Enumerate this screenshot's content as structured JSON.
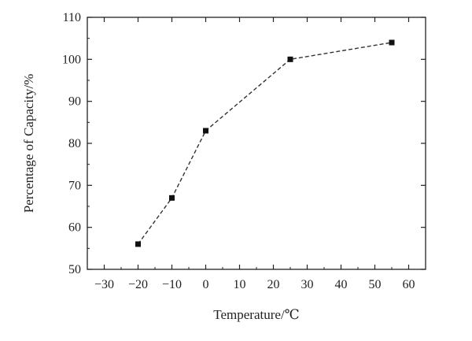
{
  "chart_data": {
    "type": "line",
    "title": "",
    "xlabel": "Temperature/℃",
    "ylabel": "Percentage of Capacity/%",
    "xlim": [
      -35,
      65
    ],
    "ylim": [
      50,
      110
    ],
    "xticks": [
      -30,
      -20,
      -10,
      0,
      10,
      20,
      30,
      40,
      50,
      60
    ],
    "yticks": [
      50,
      60,
      70,
      80,
      90,
      100,
      110
    ],
    "xtick_labels": [
      "−30",
      "−20",
      "−10",
      "0",
      "10",
      "20",
      "30",
      "40",
      "50",
      "60"
    ],
    "ytick_labels": [
      "50",
      "60",
      "70",
      "80",
      "90",
      "100",
      "110"
    ],
    "grid": false,
    "line_style": "dashed",
    "marker": "square",
    "colors": {
      "line": "#333333",
      "marker": "#111111",
      "axis": "#222222"
    },
    "series": [
      {
        "x": [
          -20,
          -10,
          0,
          25,
          55
        ],
        "y": [
          56,
          67,
          83,
          100,
          104
        ]
      }
    ]
  }
}
